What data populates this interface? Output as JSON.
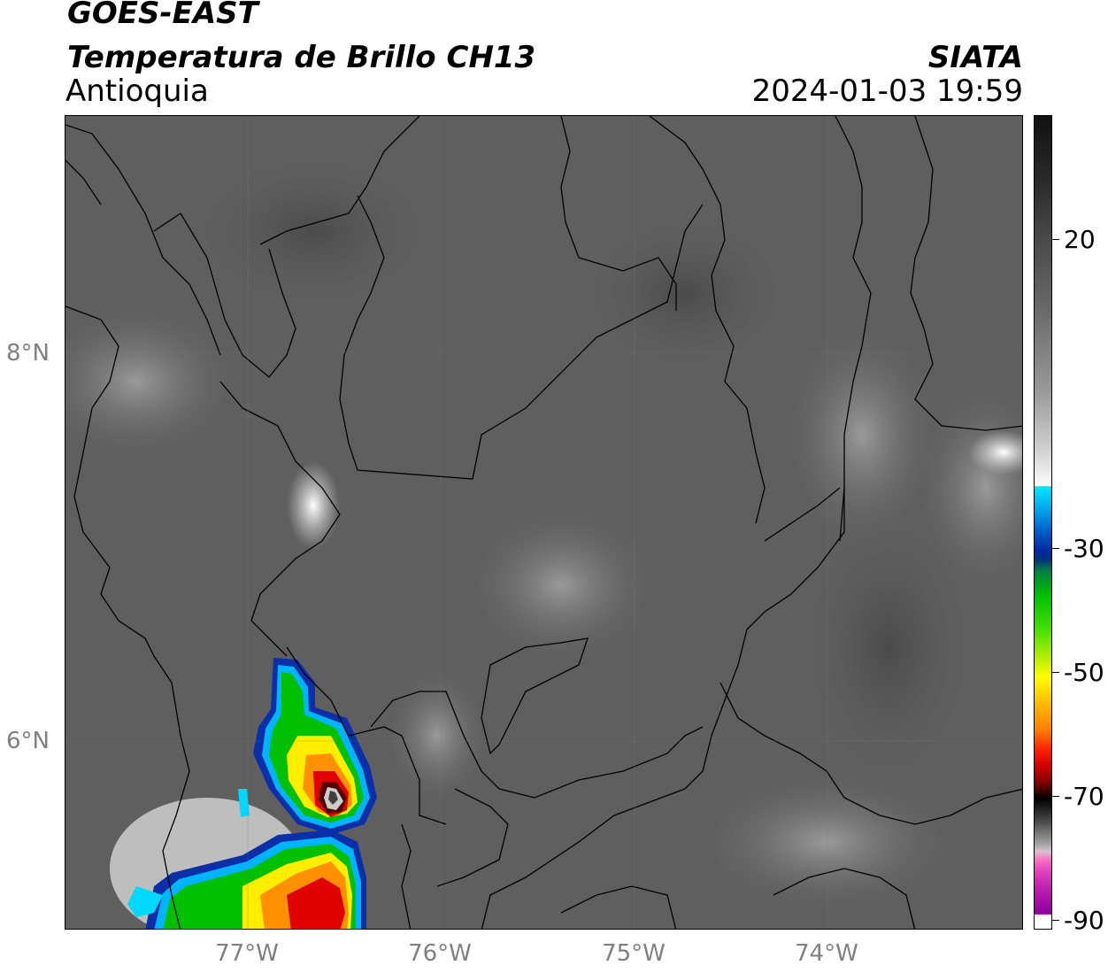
{
  "header": {
    "satellite": "GOES-EAST",
    "product": "Temperatura de Brillo CH13",
    "region": "Antioquia",
    "organization": "SIATA",
    "datetime": "2024-01-03 19:59"
  },
  "map": {
    "lat_ticks": [
      "8°N",
      "6°N"
    ],
    "lon_ticks": [
      "77°W",
      "76°W",
      "75°W",
      "74°W"
    ],
    "lon_range": [
      -77.95,
      -73.0
    ],
    "lat_range": [
      5.0,
      9.2
    ],
    "background_color": "#606060",
    "boundary_color": "#000000"
  },
  "colorbar": {
    "tick_labels": [
      "20",
      "-30",
      "-50",
      "-70",
      "-90"
    ],
    "tick_values": [
      20,
      -30,
      -50,
      -70,
      -90
    ],
    "range": [
      40,
      -91
    ],
    "colors": {
      "warm_gray_dark": "#1a1a1a",
      "gray_mid": "#8c8c8c",
      "white": "#ffffff",
      "cyan": "#00e6ff",
      "blue": "#0028a0",
      "green": "#00c000",
      "yellow": "#ffff00",
      "orange": "#ff9000",
      "red": "#e00000",
      "dark_red": "#600000",
      "black": "#000000",
      "pink": "#ff80c0",
      "magenta": "#a000a0"
    }
  }
}
